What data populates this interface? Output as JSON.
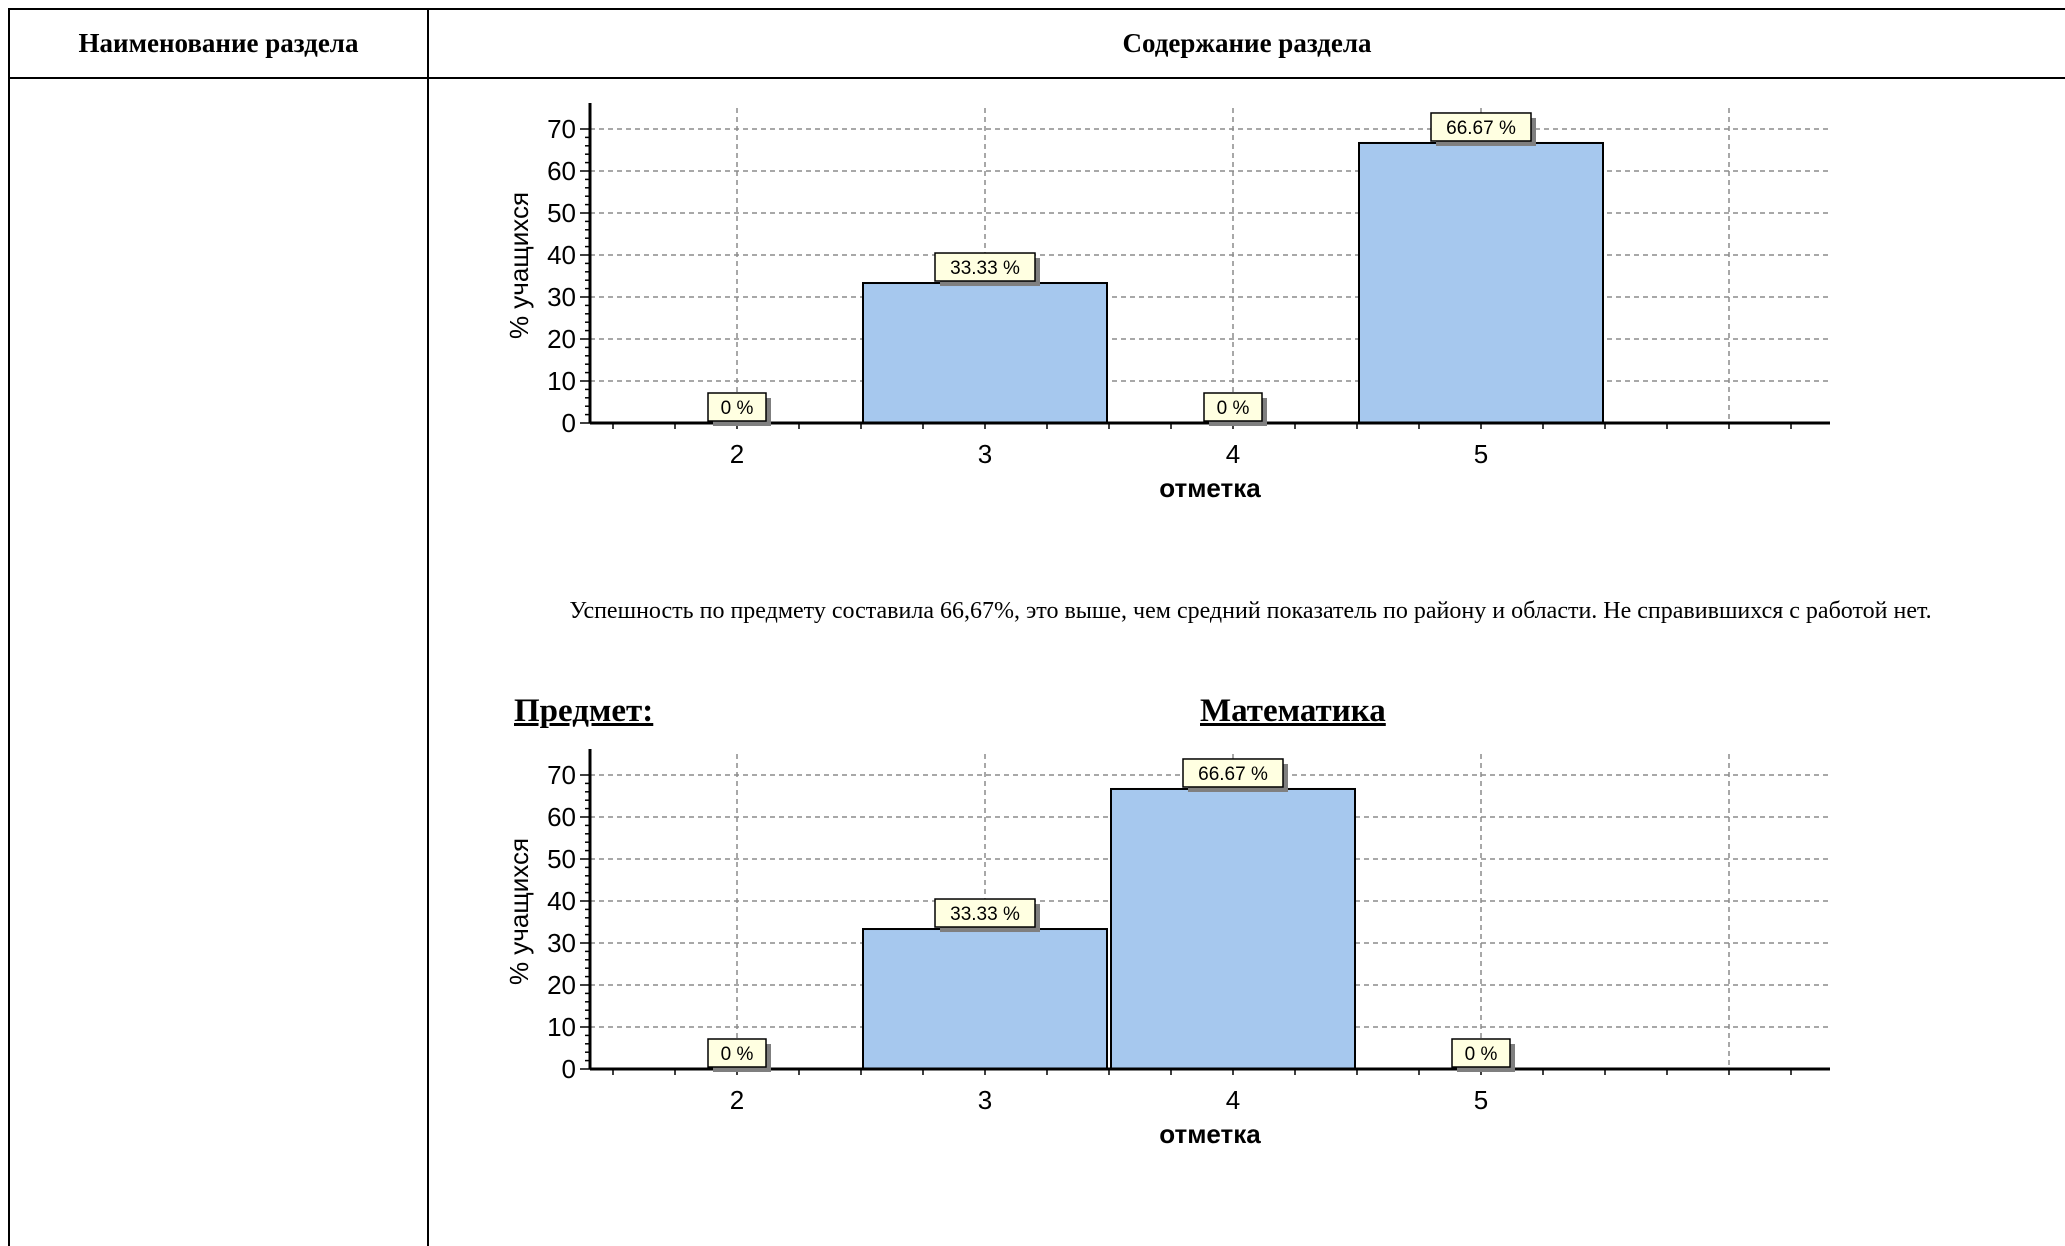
{
  "table": {
    "header_left": "Наименование раздела",
    "header_right": "Содержание раздела"
  },
  "paragraph": "Успешность по предмету составила 66,67%, это выше, чем средний показатель по району и области. Не справившихся с работой нет.",
  "subject": {
    "label": "Предмет:",
    "value": "Математика"
  },
  "colors": {
    "bar_fill": "#a6c8ee",
    "bar_stroke": "#000000",
    "grid": "#8c8c8c",
    "label_bg": "#ffffe1",
    "label_shadow": "#7f7f7f"
  },
  "chart_data": [
    {
      "type": "bar",
      "categories": [
        "2",
        "3",
        "4",
        "5"
      ],
      "values": [
        0,
        33.33,
        0,
        66.67
      ],
      "data_labels": [
        "0 %",
        "33.33 %",
        "0 %",
        "66.67 %"
      ],
      "xlabel": "отметка",
      "ylabel": "% учащихся",
      "ylim": [
        0,
        70
      ],
      "yticks": [
        "0",
        "10",
        "20",
        "30",
        "40",
        "50",
        "60",
        "70"
      ],
      "grid": true
    },
    {
      "type": "bar",
      "categories": [
        "2",
        "3",
        "4",
        "5"
      ],
      "values": [
        0,
        33.33,
        66.67,
        0
      ],
      "data_labels": [
        "0 %",
        "33.33 %",
        "66.67 %",
        "0 %"
      ],
      "xlabel": "отметка",
      "ylabel": "% учащихся",
      "ylim": [
        0,
        70
      ],
      "yticks": [
        "0",
        "10",
        "20",
        "30",
        "40",
        "50",
        "60",
        "70"
      ],
      "grid": true
    }
  ]
}
